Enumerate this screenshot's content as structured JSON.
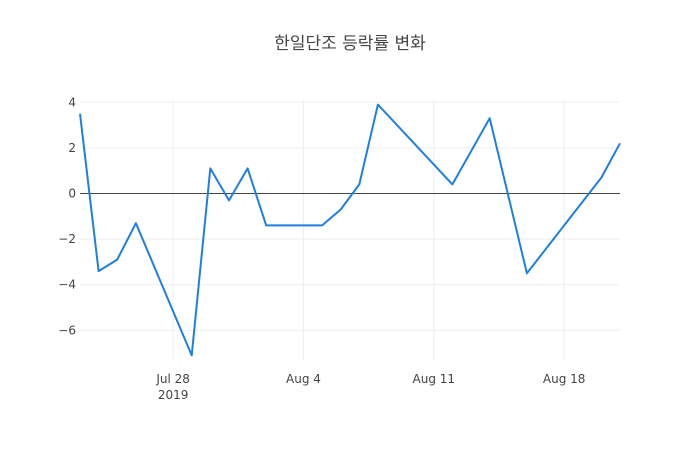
{
  "chart_data": {
    "type": "line",
    "title": "한일단조 등락률 변화",
    "xlabel": "",
    "ylabel": "",
    "x_ticks": [
      {
        "date": "2019-07-28",
        "label": "Jul 28",
        "sub": "2019"
      },
      {
        "date": "2019-08-04",
        "label": "Aug 4",
        "sub": ""
      },
      {
        "date": "2019-08-11",
        "label": "Aug 11",
        "sub": ""
      },
      {
        "date": "2019-08-18",
        "label": "Aug 18",
        "sub": ""
      }
    ],
    "y_ticks": [
      4,
      2,
      0,
      -2,
      -4,
      -6
    ],
    "y_tick_labels": [
      "4",
      "2",
      "0",
      "−2",
      "−4",
      "−6"
    ],
    "xlim": [
      "2019-07-23",
      "2019-08-21"
    ],
    "ylim": [
      -7.3,
      4.1
    ],
    "grid": true,
    "zero_line": true,
    "line_color": "#1f7fe0",
    "series": [
      {
        "x": [
          "2019-07-23",
          "2019-07-24",
          "2019-07-25",
          "2019-07-26",
          "2019-07-29",
          "2019-07-30",
          "2019-07-31",
          "2019-08-01",
          "2019-08-02",
          "2019-08-05",
          "2019-08-06",
          "2019-08-07",
          "2019-08-08",
          "2019-08-12",
          "2019-08-14",
          "2019-08-16",
          "2019-08-20",
          "2019-08-21"
        ],
        "values": [
          3.5,
          -3.4,
          -2.9,
          -1.3,
          -7.1,
          1.1,
          -0.3,
          1.1,
          -1.4,
          -1.4,
          -0.7,
          0.4,
          3.9,
          0.4,
          3.3,
          -3.5,
          0.7,
          2.2
        ]
      }
    ]
  }
}
